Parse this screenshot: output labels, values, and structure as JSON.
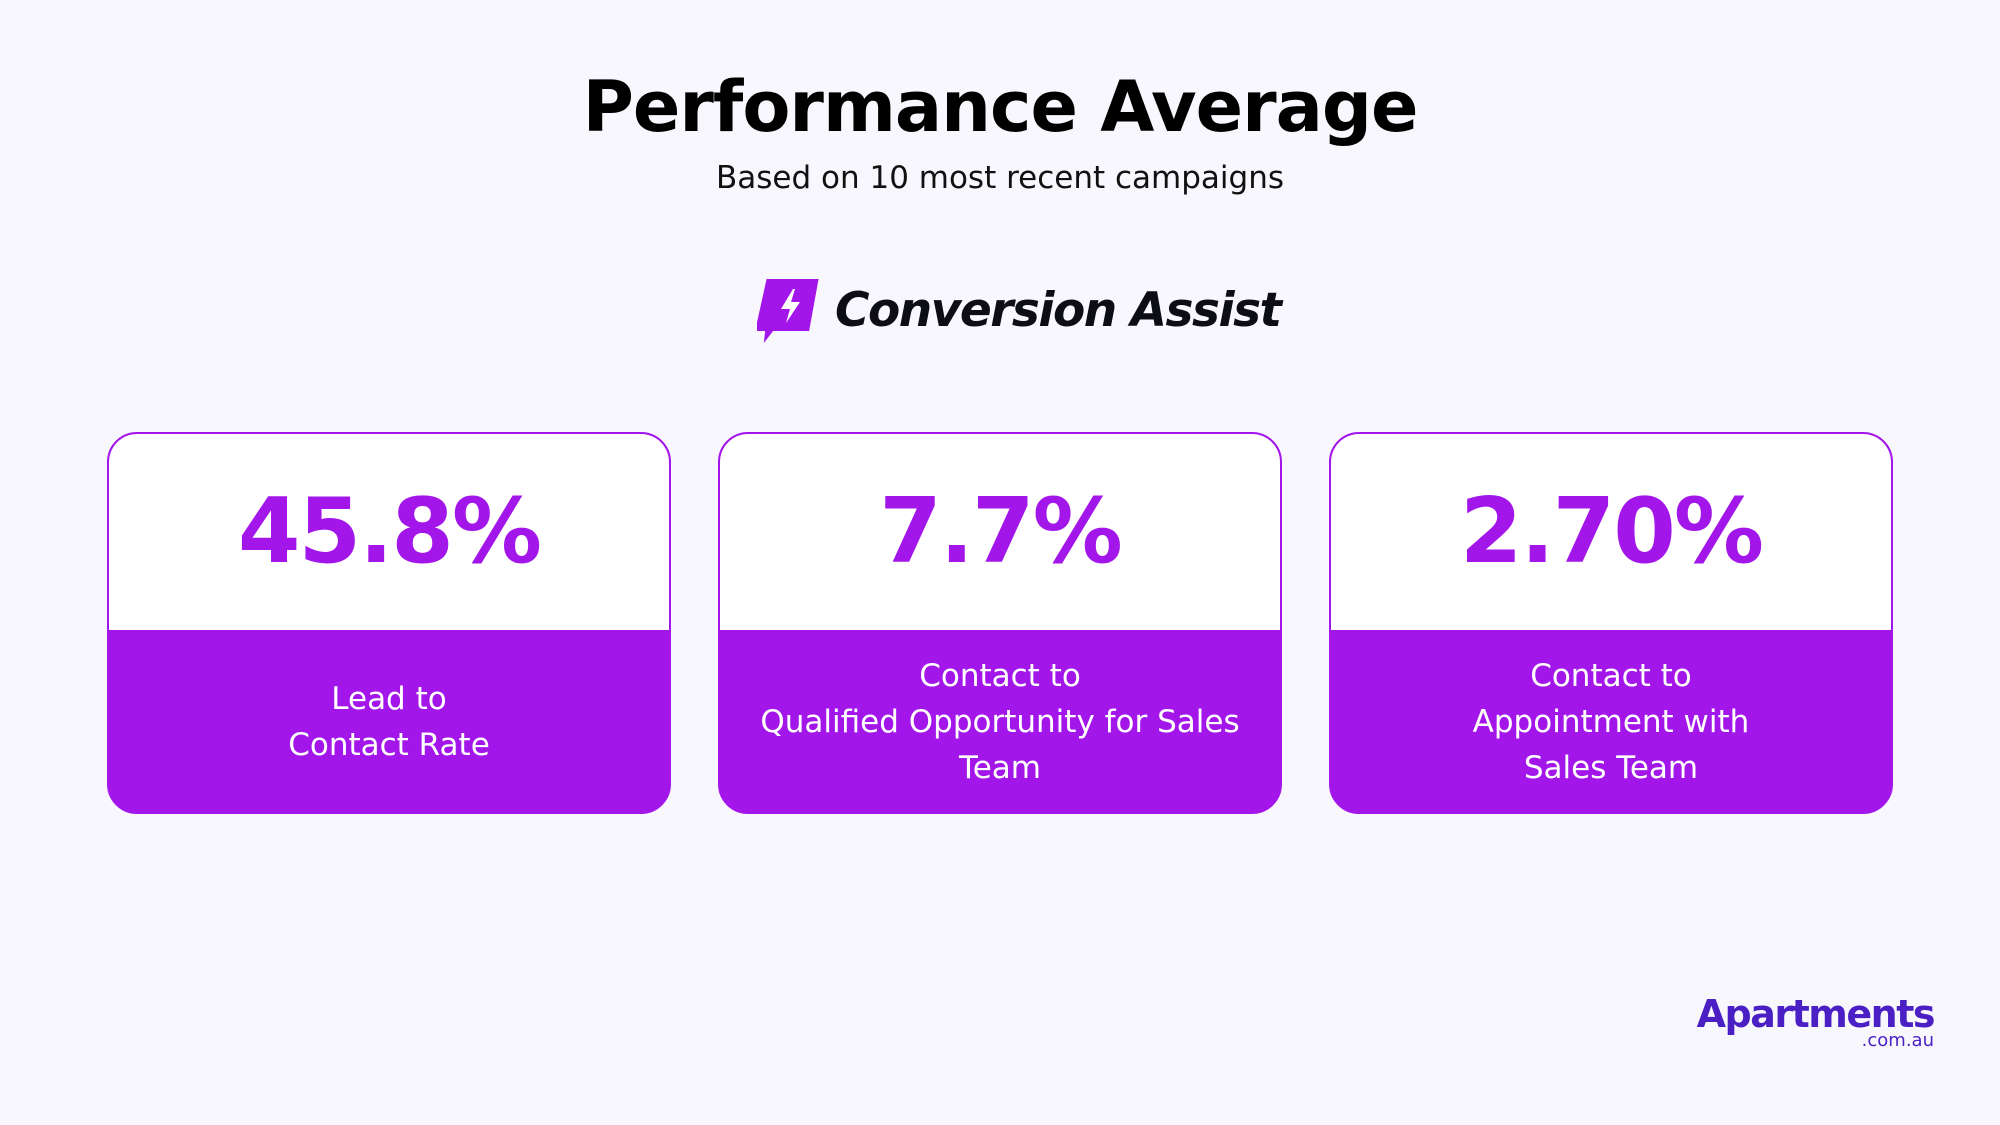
{
  "header": {
    "title": "Performance Average",
    "subtitle": "Based on 10 most recent campaigns"
  },
  "brand": {
    "name": "Conversion Assist",
    "icon": "lightning-chat-icon",
    "color": "#a316ea"
  },
  "metrics": [
    {
      "value": "45.8%",
      "label": "Lead to\nContact Rate"
    },
    {
      "value": "7.7%",
      "label": "Contact to\nQualified Opportunity for Sales Team"
    },
    {
      "value": "2.70%",
      "label": "Contact to\nAppointment with\nSales Team"
    }
  ],
  "footer_logo": {
    "main": "Apartments",
    "sub": ".com.au",
    "color": "#4a1fc4"
  },
  "colors": {
    "background": "#f8f7fd",
    "accent": "#a316ea",
    "card_top": "#ffffff"
  }
}
